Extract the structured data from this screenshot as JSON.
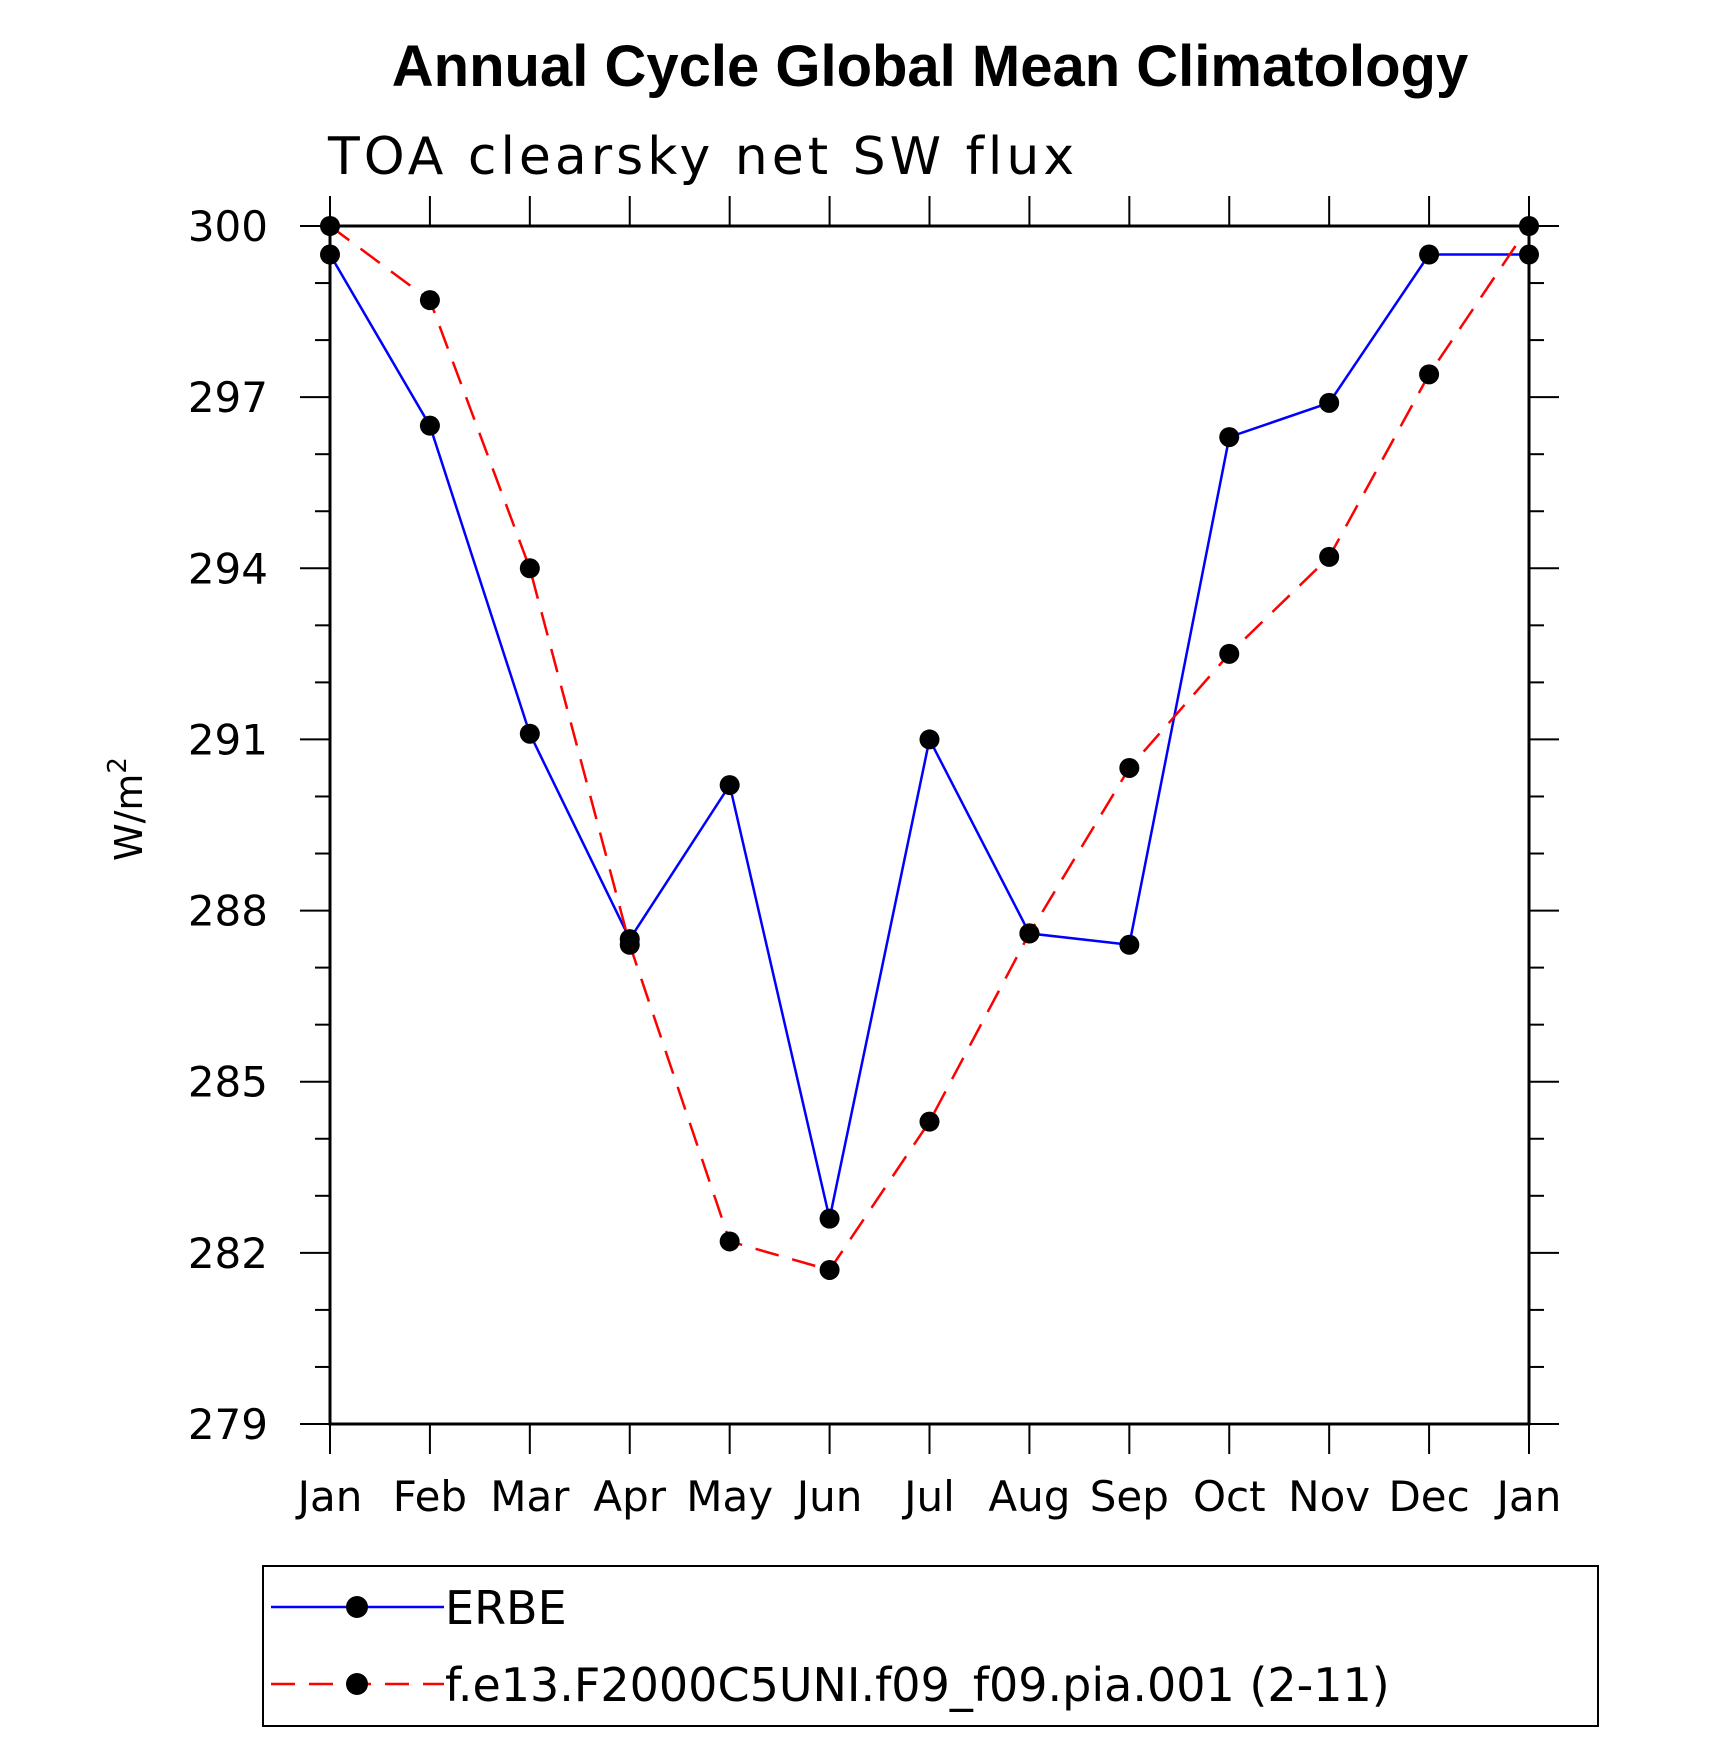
{
  "chart_data": {
    "type": "line",
    "title": "Annual Cycle Global Mean Climatology",
    "subtitle": "TOA clearsky net SW flux",
    "xlabel": "",
    "ylabel": "W/m",
    "ylabel_superscript": "2",
    "categories": [
      "Jan",
      "Feb",
      "Mar",
      "Apr",
      "May",
      "Jun",
      "Jul",
      "Aug",
      "Sep",
      "Oct",
      "Nov",
      "Dec",
      "Jan"
    ],
    "ylim": [
      279,
      300
    ],
    "yticks": [
      "300",
      "297",
      "294",
      "291",
      "288",
      "285",
      "282",
      "279"
    ],
    "ytick_values": [
      300,
      297,
      294,
      291,
      288,
      285,
      282,
      279
    ],
    "grid": false,
    "legend_position": "bottom",
    "series": [
      {
        "name": "ERBE",
        "color": "#0000ff",
        "dash": "solid",
        "values": [
          299.5,
          296.5,
          291.1,
          287.5,
          290.2,
          282.6,
          291.0,
          287.6,
          287.4,
          296.3,
          296.9,
          299.5,
          299.5
        ]
      },
      {
        "name": "f.e13.F2000C5UNI.f09_f09.pia.001 (2-11)",
        "color": "#ff0000",
        "dash": "dashed",
        "values": [
          300.0,
          298.7,
          294.0,
          287.4,
          282.2,
          281.7,
          284.3,
          287.6,
          290.5,
          292.5,
          294.2,
          297.4,
          300.0
        ]
      }
    ]
  }
}
